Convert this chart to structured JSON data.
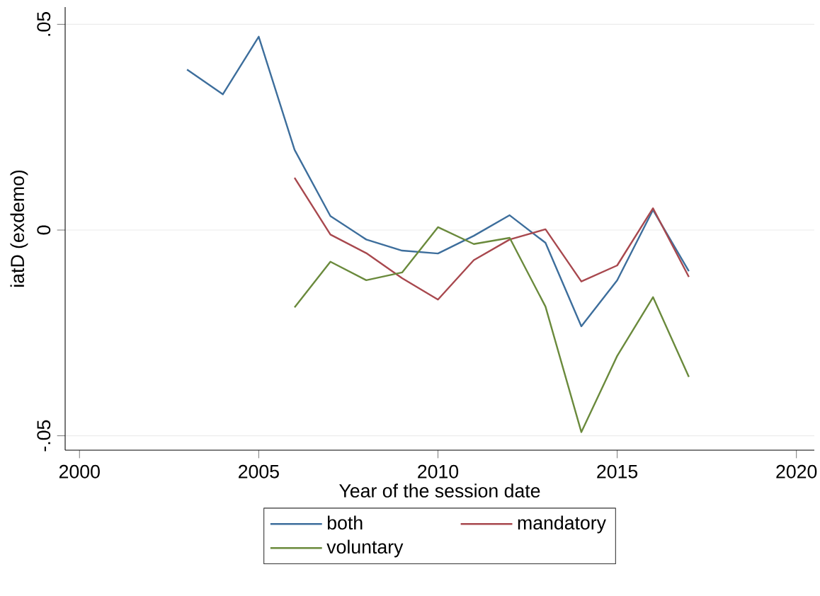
{
  "chart_data": {
    "type": "line",
    "xlabel": "Year of the session date",
    "ylabel": "iatD (exdemo)",
    "x": [
      2003,
      2004,
      2005,
      2006,
      2007,
      2008,
      2009,
      2010,
      2011,
      2012,
      2013,
      2014,
      2015,
      2016,
      2017
    ],
    "series": [
      {
        "name": "both",
        "color": "#3d6e9c",
        "values": [
          0.039,
          0.033,
          0.047,
          0.0195,
          0.0034,
          -0.0023,
          -0.005,
          -0.0057,
          -0.0014,
          0.0036,
          -0.0031,
          -0.0234,
          -0.0122,
          0.0049,
          -0.01
        ]
      },
      {
        "name": "mandatory",
        "color": "#a8484e",
        "values": [
          null,
          null,
          null,
          0.0127,
          -0.0011,
          -0.0056,
          -0.0117,
          -0.0169,
          -0.0073,
          -0.0023,
          0.0002,
          -0.0125,
          -0.0086,
          0.0053,
          -0.0114
        ]
      },
      {
        "name": "voluntary",
        "color": "#6a8a3c",
        "values": [
          null,
          null,
          null,
          -0.0188,
          -0.0077,
          -0.0122,
          -0.0103,
          0.0007,
          -0.0034,
          -0.0019,
          -0.0186,
          -0.0491,
          -0.0306,
          -0.0163,
          -0.0357
        ]
      }
    ],
    "xlim": [
      1999.6,
      2020.5
    ],
    "xticks": [
      2000,
      2005,
      2010,
      2015,
      2020
    ],
    "ylim": [
      -0.0535,
      0.0542
    ],
    "yticks": [
      {
        "value": -0.05,
        "label": "-.05"
      },
      0,
      {
        "value": 0.05,
        "label": ".05"
      }
    ],
    "grid": "y",
    "legend": "bottom",
    "marker": "none",
    "line_style": "solid"
  }
}
